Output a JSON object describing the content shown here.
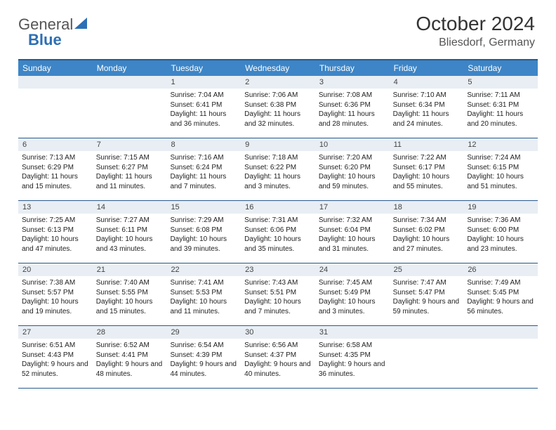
{
  "brand": {
    "part1": "General",
    "part2": "Blue"
  },
  "title": "October 2024",
  "location": "Bliesdorf, Germany",
  "colors": {
    "header_bg": "#3d85c6",
    "header_border": "#2a5a8a",
    "daynum_bg": "#e8eef4",
    "text": "#333333",
    "brand_gray": "#555555",
    "brand_blue": "#2c6fb5"
  },
  "daynames": [
    "Sunday",
    "Monday",
    "Tuesday",
    "Wednesday",
    "Thursday",
    "Friday",
    "Saturday"
  ],
  "weeks": [
    [
      {
        "n": "",
        "empty": true
      },
      {
        "n": "",
        "empty": true
      },
      {
        "n": "1",
        "sr": "Sunrise: 7:04 AM",
        "ss": "Sunset: 6:41 PM",
        "dl": "Daylight: 11 hours and 36 minutes."
      },
      {
        "n": "2",
        "sr": "Sunrise: 7:06 AM",
        "ss": "Sunset: 6:38 PM",
        "dl": "Daylight: 11 hours and 32 minutes."
      },
      {
        "n": "3",
        "sr": "Sunrise: 7:08 AM",
        "ss": "Sunset: 6:36 PM",
        "dl": "Daylight: 11 hours and 28 minutes."
      },
      {
        "n": "4",
        "sr": "Sunrise: 7:10 AM",
        "ss": "Sunset: 6:34 PM",
        "dl": "Daylight: 11 hours and 24 minutes."
      },
      {
        "n": "5",
        "sr": "Sunrise: 7:11 AM",
        "ss": "Sunset: 6:31 PM",
        "dl": "Daylight: 11 hours and 20 minutes."
      }
    ],
    [
      {
        "n": "6",
        "sr": "Sunrise: 7:13 AM",
        "ss": "Sunset: 6:29 PM",
        "dl": "Daylight: 11 hours and 15 minutes."
      },
      {
        "n": "7",
        "sr": "Sunrise: 7:15 AM",
        "ss": "Sunset: 6:27 PM",
        "dl": "Daylight: 11 hours and 11 minutes."
      },
      {
        "n": "8",
        "sr": "Sunrise: 7:16 AM",
        "ss": "Sunset: 6:24 PM",
        "dl": "Daylight: 11 hours and 7 minutes."
      },
      {
        "n": "9",
        "sr": "Sunrise: 7:18 AM",
        "ss": "Sunset: 6:22 PM",
        "dl": "Daylight: 11 hours and 3 minutes."
      },
      {
        "n": "10",
        "sr": "Sunrise: 7:20 AM",
        "ss": "Sunset: 6:20 PM",
        "dl": "Daylight: 10 hours and 59 minutes."
      },
      {
        "n": "11",
        "sr": "Sunrise: 7:22 AM",
        "ss": "Sunset: 6:17 PM",
        "dl": "Daylight: 10 hours and 55 minutes."
      },
      {
        "n": "12",
        "sr": "Sunrise: 7:24 AM",
        "ss": "Sunset: 6:15 PM",
        "dl": "Daylight: 10 hours and 51 minutes."
      }
    ],
    [
      {
        "n": "13",
        "sr": "Sunrise: 7:25 AM",
        "ss": "Sunset: 6:13 PM",
        "dl": "Daylight: 10 hours and 47 minutes."
      },
      {
        "n": "14",
        "sr": "Sunrise: 7:27 AM",
        "ss": "Sunset: 6:11 PM",
        "dl": "Daylight: 10 hours and 43 minutes."
      },
      {
        "n": "15",
        "sr": "Sunrise: 7:29 AM",
        "ss": "Sunset: 6:08 PM",
        "dl": "Daylight: 10 hours and 39 minutes."
      },
      {
        "n": "16",
        "sr": "Sunrise: 7:31 AM",
        "ss": "Sunset: 6:06 PM",
        "dl": "Daylight: 10 hours and 35 minutes."
      },
      {
        "n": "17",
        "sr": "Sunrise: 7:32 AM",
        "ss": "Sunset: 6:04 PM",
        "dl": "Daylight: 10 hours and 31 minutes."
      },
      {
        "n": "18",
        "sr": "Sunrise: 7:34 AM",
        "ss": "Sunset: 6:02 PM",
        "dl": "Daylight: 10 hours and 27 minutes."
      },
      {
        "n": "19",
        "sr": "Sunrise: 7:36 AM",
        "ss": "Sunset: 6:00 PM",
        "dl": "Daylight: 10 hours and 23 minutes."
      }
    ],
    [
      {
        "n": "20",
        "sr": "Sunrise: 7:38 AM",
        "ss": "Sunset: 5:57 PM",
        "dl": "Daylight: 10 hours and 19 minutes."
      },
      {
        "n": "21",
        "sr": "Sunrise: 7:40 AM",
        "ss": "Sunset: 5:55 PM",
        "dl": "Daylight: 10 hours and 15 minutes."
      },
      {
        "n": "22",
        "sr": "Sunrise: 7:41 AM",
        "ss": "Sunset: 5:53 PM",
        "dl": "Daylight: 10 hours and 11 minutes."
      },
      {
        "n": "23",
        "sr": "Sunrise: 7:43 AM",
        "ss": "Sunset: 5:51 PM",
        "dl": "Daylight: 10 hours and 7 minutes."
      },
      {
        "n": "24",
        "sr": "Sunrise: 7:45 AM",
        "ss": "Sunset: 5:49 PM",
        "dl": "Daylight: 10 hours and 3 minutes."
      },
      {
        "n": "25",
        "sr": "Sunrise: 7:47 AM",
        "ss": "Sunset: 5:47 PM",
        "dl": "Daylight: 9 hours and 59 minutes."
      },
      {
        "n": "26",
        "sr": "Sunrise: 7:49 AM",
        "ss": "Sunset: 5:45 PM",
        "dl": "Daylight: 9 hours and 56 minutes."
      }
    ],
    [
      {
        "n": "27",
        "sr": "Sunrise: 6:51 AM",
        "ss": "Sunset: 4:43 PM",
        "dl": "Daylight: 9 hours and 52 minutes."
      },
      {
        "n": "28",
        "sr": "Sunrise: 6:52 AM",
        "ss": "Sunset: 4:41 PM",
        "dl": "Daylight: 9 hours and 48 minutes."
      },
      {
        "n": "29",
        "sr": "Sunrise: 6:54 AM",
        "ss": "Sunset: 4:39 PM",
        "dl": "Daylight: 9 hours and 44 minutes."
      },
      {
        "n": "30",
        "sr": "Sunrise: 6:56 AM",
        "ss": "Sunset: 4:37 PM",
        "dl": "Daylight: 9 hours and 40 minutes."
      },
      {
        "n": "31",
        "sr": "Sunrise: 6:58 AM",
        "ss": "Sunset: 4:35 PM",
        "dl": "Daylight: 9 hours and 36 minutes."
      },
      {
        "n": "",
        "empty": true
      },
      {
        "n": "",
        "empty": true
      }
    ]
  ]
}
